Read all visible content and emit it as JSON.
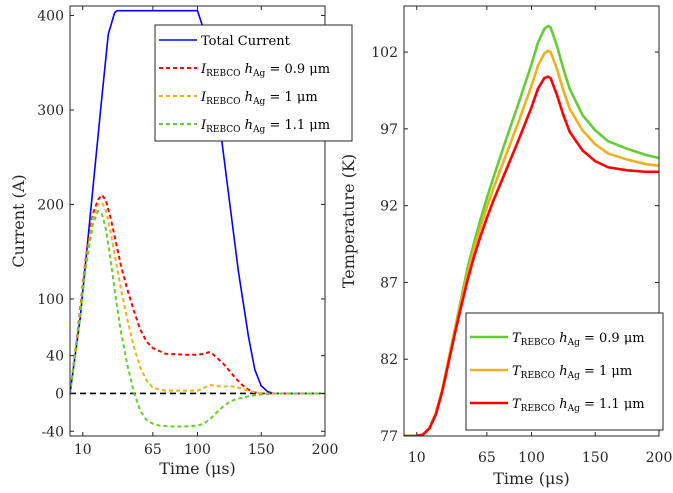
{
  "chart_data": [
    {
      "type": "line",
      "xlabel": "Time (μs)",
      "ylabel": "Current (A)",
      "xlim": [
        0,
        200
      ],
      "ylim": [
        -45,
        410
      ],
      "xticks": [
        {
          "value": 10,
          "label": "10"
        },
        {
          "value": 65,
          "label": "65"
        },
        {
          "value": 100,
          "label": "100"
        },
        {
          "value": 150,
          "label": "150"
        },
        {
          "value": 200,
          "label": "200"
        }
      ],
      "yticks": [
        {
          "value": -40,
          "label": "-40"
        },
        {
          "value": 0,
          "label": "0"
        },
        {
          "value": 40,
          "label": "40"
        },
        {
          "value": 100,
          "label": "100"
        },
        {
          "value": 200,
          "label": "200"
        },
        {
          "value": 300,
          "label": "300"
        },
        {
          "value": 400,
          "label": "400"
        }
      ],
      "grid": false,
      "legend_position": "top-right",
      "reference_line": {
        "y": 0,
        "style": "dashed",
        "color": "#000000"
      },
      "series": [
        {
          "name": "Total Current",
          "color": "#0000ff",
          "style": "solid",
          "x": [
            0,
            8,
            16,
            24,
            30,
            35,
            37,
            60,
            100,
            108,
            116,
            124,
            132,
            140,
            145,
            150,
            155,
            160,
            170,
            200
          ],
          "y": [
            0,
            80,
            190,
            300,
            380,
            403,
            405,
            405,
            405,
            372,
            300,
            215,
            130,
            60,
            25,
            8,
            2,
            0,
            0,
            0
          ]
        },
        {
          "name_main": "I",
          "name_sub": "REBCO",
          "name_tail": " h",
          "name_tail_sub": "Ag",
          "name_value": " = 0.9 μm",
          "color": "#ff0000",
          "style": "dashed",
          "x": [
            0,
            6,
            12,
            18,
            22,
            25,
            28,
            32,
            36,
            40,
            45,
            50,
            55,
            60,
            65,
            75,
            90,
            100,
            105,
            110,
            115,
            120,
            125,
            130,
            135,
            140,
            145,
            150,
            160,
            170,
            200
          ],
          "y": [
            0,
            65,
            140,
            190,
            205,
            210,
            205,
            185,
            160,
            135,
            110,
            88,
            68,
            55,
            48,
            42,
            41,
            41,
            42,
            44,
            38,
            32,
            24,
            16,
            9,
            4,
            1,
            0,
            0,
            0,
            0
          ]
        },
        {
          "name_main": "I",
          "name_sub": "REBCO",
          "name_tail": " h",
          "name_tail_sub": "Ag",
          "name_value": " = 1 μm",
          "color": "#edb120",
          "style": "dashed",
          "x": [
            0,
            6,
            12,
            18,
            22,
            25,
            28,
            32,
            36,
            40,
            45,
            50,
            55,
            60,
            65,
            75,
            90,
            100,
            105,
            110,
            115,
            120,
            125,
            130,
            135,
            140,
            145,
            150,
            160,
            200
          ],
          "y": [
            0,
            62,
            135,
            185,
            200,
            202,
            195,
            170,
            140,
            110,
            78,
            50,
            28,
            14,
            6,
            3,
            3,
            3,
            6,
            9,
            8,
            7,
            8,
            7,
            5,
            3,
            1,
            0,
            0,
            0
          ]
        },
        {
          "name_main": "I",
          "name_sub": "REBCO",
          "name_tail": " h",
          "name_tail_sub": "Ag",
          "name_value": " = 1.1 μm",
          "color": "#66cc33",
          "style": "dashed",
          "x": [
            0,
            6,
            12,
            18,
            22,
            25,
            28,
            32,
            36,
            40,
            45,
            50,
            55,
            60,
            65,
            70,
            80,
            90,
            100,
            105,
            110,
            115,
            120,
            125,
            130,
            140,
            150,
            160,
            200
          ],
          "y": [
            0,
            60,
            130,
            180,
            193,
            190,
            175,
            140,
            100,
            65,
            30,
            2,
            -18,
            -28,
            -32,
            -34,
            -35,
            -35,
            -34,
            -32,
            -27,
            -20,
            -14,
            -9,
            -6,
            -3,
            -1,
            0,
            0
          ]
        }
      ]
    },
    {
      "type": "line",
      "xlabel": "Time (μs)",
      "ylabel": "Temperature (K)",
      "xlim": [
        0,
        200
      ],
      "ylim": [
        77,
        105
      ],
      "xticks": [
        {
          "value": 10,
          "label": "10"
        },
        {
          "value": 65,
          "label": "65"
        },
        {
          "value": 100,
          "label": "100"
        },
        {
          "value": 150,
          "label": "150"
        },
        {
          "value": 200,
          "label": "200"
        }
      ],
      "yticks": [
        {
          "value": 77,
          "label": "77"
        },
        {
          "value": 82,
          "label": "82"
        },
        {
          "value": 87,
          "label": "87"
        },
        {
          "value": 92,
          "label": "92"
        },
        {
          "value": 97,
          "label": "97"
        },
        {
          "value": 102,
          "label": "102"
        }
      ],
      "grid": false,
      "legend_position": "bottom-right",
      "series": [
        {
          "name_main": "T",
          "name_sub": "REBCO",
          "name_tail": " h",
          "name_tail_sub": "Ag",
          "name_value": " = 0.9 μm",
          "color": "#66cc33",
          "style": "solid",
          "x": [
            0,
            10,
            15,
            20,
            25,
            30,
            35,
            40,
            45,
            50,
            55,
            60,
            65,
            70,
            80,
            90,
            100,
            105,
            110,
            113,
            115,
            120,
            125,
            130,
            140,
            150,
            160,
            175,
            190,
            200
          ],
          "y": [
            77,
            77,
            77.1,
            77.5,
            78.5,
            80,
            82,
            84,
            86,
            88,
            89.6,
            91.1,
            92.5,
            93.8,
            96.3,
            98.7,
            101.2,
            102.6,
            103.5,
            103.7,
            103.6,
            102.4,
            100.9,
            99.6,
            97.9,
            96.9,
            96.2,
            95.7,
            95.3,
            95.1
          ]
        },
        {
          "name_main": "T",
          "name_sub": "REBCO",
          "name_tail": " h",
          "name_tail_sub": "Ag",
          "name_value": " = 1 μm",
          "color": "#edb120",
          "style": "solid",
          "x": [
            0,
            10,
            15,
            20,
            25,
            30,
            35,
            40,
            45,
            50,
            55,
            60,
            65,
            70,
            80,
            90,
            100,
            105,
            110,
            113,
            115,
            120,
            125,
            130,
            140,
            150,
            160,
            175,
            190,
            200
          ],
          "y": [
            77,
            77,
            77.1,
            77.5,
            78.5,
            80,
            82,
            83.9,
            85.8,
            87.6,
            89.2,
            90.6,
            91.9,
            93.1,
            95.3,
            97.5,
            99.8,
            101.1,
            101.9,
            102.1,
            102,
            100.9,
            99.5,
            98.3,
            96.9,
            96,
            95.4,
            95,
            94.7,
            94.6
          ]
        },
        {
          "name_main": "T",
          "name_sub": "REBCO",
          "name_tail": " h",
          "name_tail_sub": "Ag",
          "name_value": " = 1.1 μm",
          "color": "#ff0000",
          "style": "solid",
          "x": [
            0,
            10,
            15,
            20,
            25,
            30,
            35,
            40,
            45,
            50,
            55,
            60,
            65,
            70,
            80,
            90,
            100,
            105,
            110,
            113,
            115,
            120,
            125,
            130,
            140,
            150,
            160,
            175,
            190,
            200
          ],
          "y": [
            77,
            77,
            77.1,
            77.5,
            78.4,
            79.9,
            81.8,
            83.7,
            85.5,
            87.2,
            88.7,
            90,
            91.2,
            92.3,
            94.3,
            96.3,
            98.4,
            99.6,
            100.3,
            100.4,
            100.3,
            99.2,
            97.9,
            96.8,
            95.6,
            94.9,
            94.5,
            94.3,
            94.2,
            94.2
          ]
        }
      ]
    }
  ]
}
